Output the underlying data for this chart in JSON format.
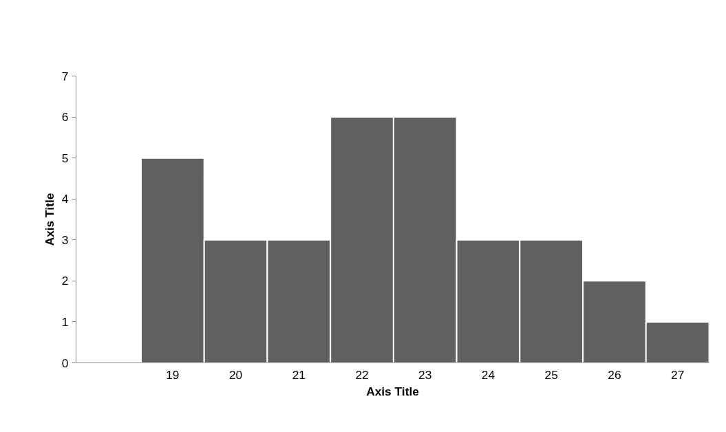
{
  "chart_data": {
    "type": "bar",
    "xlabel": "Axis Title",
    "ylabel": "Axis Title",
    "categories": [
      "19",
      "20",
      "21",
      "22",
      "23",
      "24",
      "25",
      "26",
      "27"
    ],
    "values": [
      5,
      3,
      3,
      6,
      6,
      3,
      3,
      2,
      1
    ],
    "color": "#606060",
    "ylim": [
      0,
      7
    ],
    "yticks": [
      0,
      1,
      2,
      3,
      4,
      5,
      6,
      7
    ],
    "grid": false
  }
}
